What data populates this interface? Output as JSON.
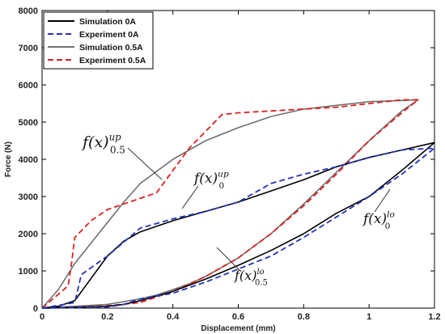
{
  "chart_data": {
    "type": "line",
    "title": "",
    "xlabel": "Displacement (mm)",
    "ylabel": "Force (N)",
    "xlim": [
      0,
      1.2
    ],
    "ylim": [
      0,
      8000
    ],
    "xticks": [
      "0",
      "0.2",
      "0.4",
      "0.6",
      "0.8",
      "1",
      "1.2"
    ],
    "yticks": [
      "0",
      "1000",
      "2000",
      "3000",
      "4000",
      "5000",
      "6000",
      "7000",
      "8000"
    ],
    "grid": false,
    "legend_position": "top-left",
    "series": [
      {
        "name": "Simulation 0A",
        "color": "#000000",
        "dash": "solid",
        "x": [
          0,
          0.05,
          0.1,
          0.15,
          0.2,
          0.25,
          0.3,
          0.4,
          0.5,
          0.6,
          0.7,
          0.8,
          0.9,
          1.0,
          1.1,
          1.2,
          1.1,
          1.0,
          0.9,
          0.8,
          0.7,
          0.6,
          0.5,
          0.4,
          0.3,
          0.25,
          0.2,
          0.1,
          0
        ],
        "y": [
          0,
          50,
          200,
          800,
          1400,
          1800,
          2050,
          2350,
          2600,
          2850,
          3150,
          3450,
          3800,
          4050,
          4250,
          4450,
          3700,
          3000,
          2550,
          2000,
          1550,
          1150,
          780,
          450,
          200,
          100,
          50,
          20,
          0
        ]
      },
      {
        "name": "Experiment 0A",
        "color": "#2233bb",
        "dash": "dashed",
        "x": [
          0,
          0.1,
          0.12,
          0.2,
          0.3,
          0.4,
          0.5,
          0.6,
          0.7,
          0.8,
          0.9,
          1.0,
          1.1,
          1.2,
          1.1,
          1.0,
          0.9,
          0.8,
          0.7,
          0.6,
          0.5,
          0.4,
          0.3,
          0.25,
          0.2,
          0.1,
          0
        ],
        "y": [
          0,
          150,
          900,
          1400,
          2150,
          2400,
          2600,
          2850,
          3350,
          3600,
          3800,
          4050,
          4250,
          4300,
          3600,
          3000,
          2450,
          1900,
          1400,
          1050,
          700,
          400,
          250,
          100,
          30,
          10,
          0
        ]
      },
      {
        "name": "Simulation 0.5A",
        "color": "#707070",
        "dash": "solid",
        "x": [
          0,
          0.05,
          0.1,
          0.15,
          0.2,
          0.25,
          0.3,
          0.4,
          0.5,
          0.6,
          0.7,
          0.8,
          0.9,
          1.0,
          1.1,
          1.15,
          1.1,
          1.0,
          0.9,
          0.8,
          0.7,
          0.6,
          0.5,
          0.45,
          0.4,
          0.35,
          0.3,
          0.2,
          0.1,
          0
        ],
        "y": [
          0,
          500,
          1200,
          1750,
          2300,
          2850,
          3350,
          4000,
          4500,
          4850,
          5150,
          5350,
          5450,
          5550,
          5580,
          5600,
          5300,
          4500,
          3650,
          2800,
          2000,
          1350,
          850,
          650,
          500,
          350,
          250,
          100,
          50,
          0
        ]
      },
      {
        "name": "Experiment 0.5A",
        "color": "#e02020",
        "dash": "dashed",
        "x": [
          0,
          0.08,
          0.09,
          0.1,
          0.15,
          0.2,
          0.25,
          0.35,
          0.4,
          0.45,
          0.55,
          0.6,
          0.7,
          0.8,
          0.9,
          1.0,
          1.1,
          1.15,
          1.1,
          1.0,
          0.9,
          0.8,
          0.7,
          0.6,
          0.5,
          0.45,
          0.4,
          0.35,
          0.3,
          0.2,
          0.1,
          0
        ],
        "y": [
          0,
          600,
          1200,
          1900,
          2350,
          2650,
          2800,
          3100,
          3700,
          4300,
          5200,
          5250,
          5300,
          5350,
          5400,
          5500,
          5600,
          5600,
          5250,
          4500,
          3600,
          2750,
          2000,
          1350,
          850,
          650,
          450,
          300,
          150,
          60,
          20,
          0
        ]
      }
    ],
    "annotations": [
      {
        "base": "f(x)",
        "sub": "0.5",
        "sup": "up"
      },
      {
        "base": "f(x)",
        "sub": "0",
        "sup": "up"
      },
      {
        "base": "f(x)",
        "sub": "0",
        "sup": "lo"
      },
      {
        "base": "f(x)",
        "sub": "0.5",
        "sup": "lo"
      }
    ]
  }
}
